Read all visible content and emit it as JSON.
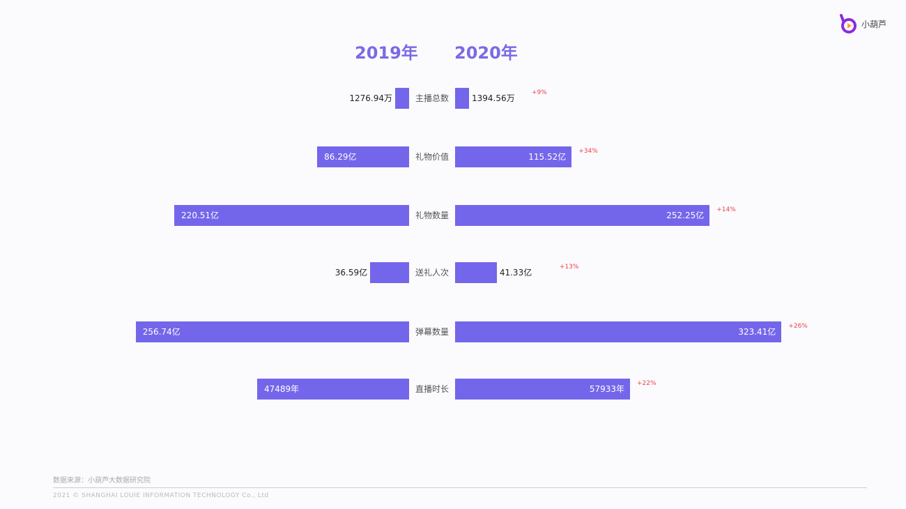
{
  "brand": {
    "name": "小葫芦",
    "color": "#8a2be2"
  },
  "footer": {
    "source": "数据来源：小葫芦大数据研究院",
    "copyright": "2021 © SHANGHAI LOUIE INFORMATION TECHNOLOGY Co., Ltd"
  },
  "chart_data": {
    "type": "bar",
    "orientation": "horizontal-butterfly",
    "bar_color": "#7466ea",
    "change_color": "#e8424a",
    "categories": [
      "主播总数",
      "礼物价值",
      "礼物数量",
      "送礼人次",
      "弹幕数量",
      "直播时长"
    ],
    "series": [
      {
        "name": "2019年",
        "values": [
          1276.94,
          86.29,
          220.51,
          36.59,
          256.74,
          47489
        ],
        "labels": [
          "1276.94万",
          "86.29亿",
          "220.51亿",
          "36.59亿",
          "256.74亿",
          "47489年"
        ]
      },
      {
        "name": "2020年",
        "values": [
          1394.56,
          115.52,
          252.25,
          41.33,
          323.41,
          57933
        ],
        "labels": [
          "1394.56万",
          "115.52亿",
          "252.25亿",
          "41.33亿",
          "323.41亿",
          "57933年"
        ]
      }
    ],
    "units": [
      "万",
      "亿",
      "亿",
      "亿",
      "亿",
      "年"
    ],
    "changes": [
      "+9%",
      "+34%",
      "+14%",
      "+13%",
      "+26%",
      "+22%"
    ],
    "grid": false
  }
}
